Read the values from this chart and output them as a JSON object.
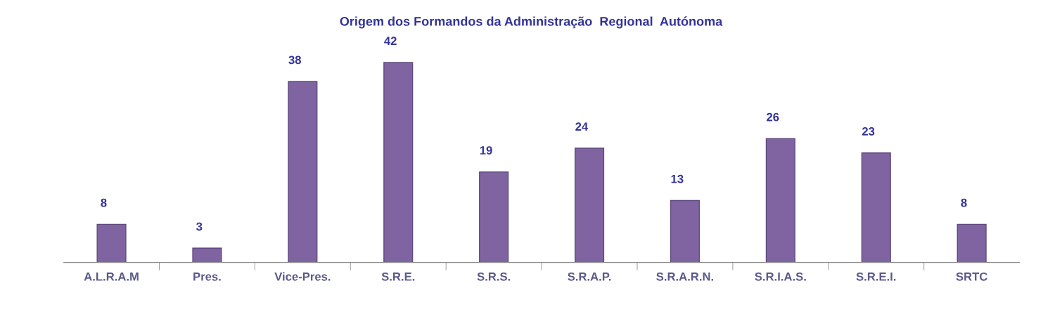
{
  "chart_data": {
    "type": "bar",
    "title": "Origem dos Formandos da Administração  Regional  Autónoma",
    "categories": [
      "A.L.R.A.M",
      "Pres.",
      "Vice-Pres.",
      "S.R.E.",
      "S.R.S.",
      "S.R.A.P.",
      "S.R.A.R.N.",
      "S.R.I.A.S.",
      "S.R.E.I.",
      "SRTC"
    ],
    "values": [
      8,
      3,
      38,
      42,
      19,
      24,
      13,
      26,
      23,
      8
    ],
    "color": "#8064a2",
    "data_labels": true,
    "grid": false,
    "legend": false
  }
}
